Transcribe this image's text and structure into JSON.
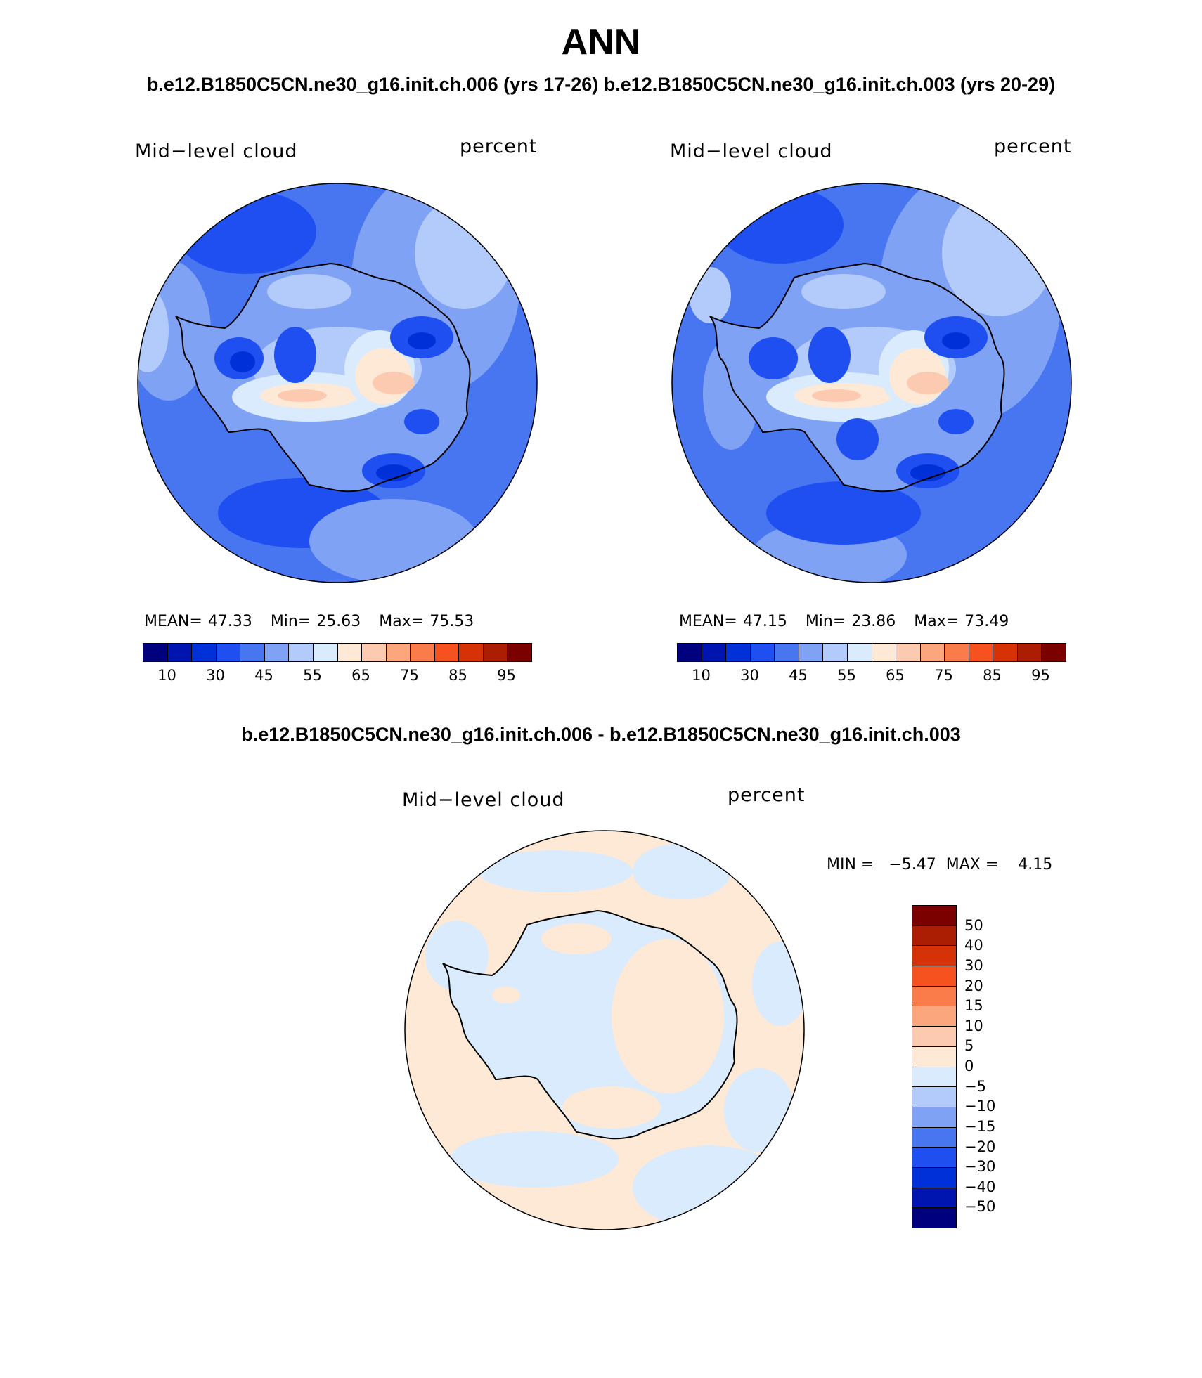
{
  "header": {
    "season": "ANN",
    "case1": "b.e12.B1850C5CN.ne30_g16.init.ch.006 (yrs 17-26)",
    "case2": "b.e12.B1850C5CN.ne30_g16.init.ch.003 (yrs 20-29)",
    "diff_title": "b.e12.B1850C5CN.ne30_g16.init.ch.006 - b.e12.B1850C5CN.ne30_g16.init.ch.003"
  },
  "panels": [
    {
      "variable": "Mid−level cloud",
      "units": "percent",
      "stats": {
        "mean_label": "MEAN=",
        "mean": "47.33",
        "min_label": "Min=",
        "min": "25.63",
        "max_label": "Max=",
        "max": "75.53"
      }
    },
    {
      "variable": "Mid−level cloud",
      "units": "percent",
      "stats": {
        "mean_label": "MEAN=",
        "mean": "47.15",
        "min_label": "Min=",
        "min": "23.86",
        "max_label": "Max=",
        "max": "73.49"
      }
    }
  ],
  "diff_panel": {
    "variable": "Mid−level cloud",
    "units": "percent",
    "minmax": "MIN =   −5.47  MAX =    4.15"
  },
  "colorbar_abs": {
    "colors": [
      "#00007f",
      "#0015b0",
      "#0031d8",
      "#1f4ff0",
      "#4875f0",
      "#7fa2f5",
      "#b2cbfb",
      "#d9ebfd",
      "#fee9d6",
      "#fccab0",
      "#fba67c",
      "#fa7c4b",
      "#f6521f",
      "#d63207",
      "#ac1e04",
      "#7b0000"
    ],
    "tick_labels": [
      "10",
      "30",
      "45",
      "55",
      "65",
      "75",
      "85",
      "95"
    ]
  },
  "colorbar_diff": {
    "colors": [
      "#7b0000",
      "#ac1e04",
      "#d63207",
      "#f6521f",
      "#fa7c4b",
      "#fba67c",
      "#fccab0",
      "#fee9d6",
      "#d9ebfd",
      "#b2cbfb",
      "#7fa2f5",
      "#4875f0",
      "#1f4ff0",
      "#0031d8",
      "#0015b0",
      "#00007f"
    ],
    "tick_labels": [
      "50",
      "40",
      "30",
      "20",
      "15",
      "10",
      "5",
      "0",
      "−5",
      "−10",
      "−15",
      "−20",
      "−30",
      "−40",
      "−50"
    ]
  }
}
